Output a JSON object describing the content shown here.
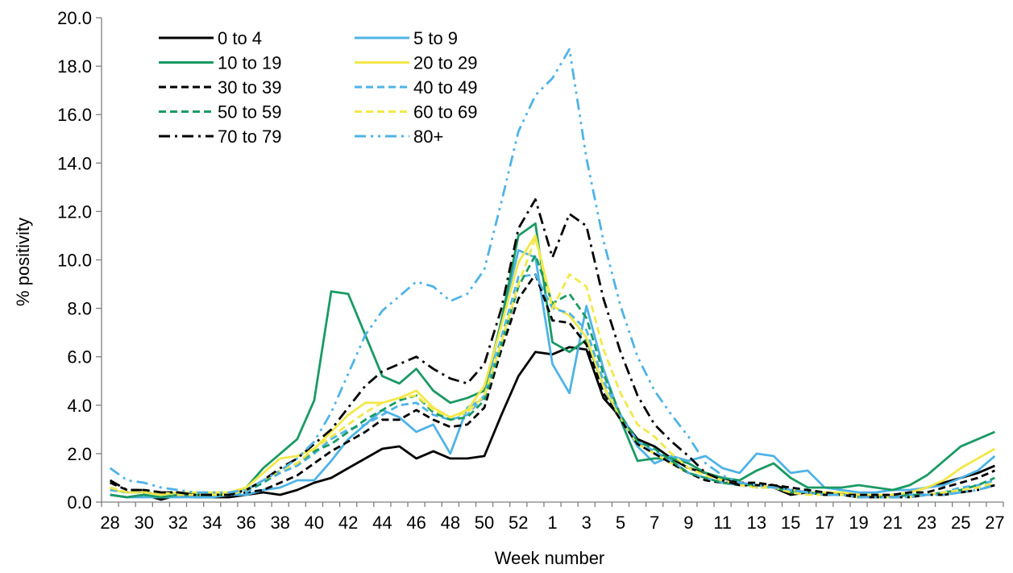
{
  "chart_data": {
    "type": "line",
    "title": "",
    "xlabel": "Week number",
    "ylabel": "% positivity",
    "ylim": [
      0,
      20
    ],
    "yticks": [
      "0.0",
      "2.0",
      "4.0",
      "6.0",
      "8.0",
      "10.0",
      "12.0",
      "14.0",
      "16.0",
      "18.0",
      "20.0"
    ],
    "x": [
      28,
      29,
      30,
      31,
      32,
      33,
      34,
      35,
      36,
      37,
      38,
      39,
      40,
      41,
      42,
      43,
      44,
      45,
      46,
      47,
      48,
      49,
      50,
      51,
      52,
      53,
      1,
      2,
      3,
      4,
      5,
      6,
      7,
      8,
      9,
      10,
      11,
      12,
      13,
      14,
      15,
      16,
      17,
      18,
      19,
      20,
      21,
      22,
      23,
      24,
      25,
      26,
      27
    ],
    "xtick_labels": [
      "28",
      "30",
      "32",
      "34",
      "36",
      "38",
      "40",
      "42",
      "44",
      "46",
      "48",
      "50",
      "52",
      "1",
      "3",
      "5",
      "7",
      "9",
      "11",
      "13",
      "15",
      "17",
      "19",
      "21",
      "23",
      "25",
      "27"
    ],
    "grid": false,
    "legend_position": "top-left",
    "series": [
      {
        "name": "0 to 4",
        "color": "#000000",
        "dash": "solid",
        "values": [
          0.3,
          0.2,
          0.3,
          0.1,
          0.3,
          0.2,
          0.2,
          0.2,
          0.3,
          0.4,
          0.3,
          0.5,
          0.8,
          1.0,
          1.4,
          1.8,
          2.2,
          2.3,
          1.8,
          2.1,
          1.8,
          1.8,
          1.9,
          3.6,
          5.2,
          6.2,
          6.1,
          6.4,
          6.3,
          4.3,
          3.5,
          2.6,
          2.3,
          1.8,
          1.4,
          1.2,
          1.0,
          0.8,
          0.7,
          0.6,
          0.3,
          0.4,
          0.3,
          0.3,
          0.3,
          0.2,
          0.3,
          0.4,
          0.6,
          0.8,
          1.0,
          1.2,
          1.5
        ]
      },
      {
        "name": "5 to 9",
        "color": "#4fb3e6",
        "dash": "solid",
        "values": [
          0.3,
          0.2,
          0.2,
          0.2,
          0.2,
          0.2,
          0.2,
          0.3,
          0.3,
          0.5,
          0.6,
          0.9,
          0.9,
          1.7,
          2.6,
          3.2,
          3.8,
          3.5,
          2.9,
          3.2,
          2.0,
          3.9,
          4.3,
          7.5,
          10.4,
          10.1,
          5.7,
          4.5,
          8.1,
          5.5,
          3.5,
          2.3,
          1.6,
          1.9,
          1.7,
          1.9,
          1.4,
          1.2,
          2.0,
          1.9,
          1.2,
          1.3,
          0.6,
          0.5,
          0.4,
          0.4,
          0.5,
          0.5,
          0.6,
          0.7,
          1.0,
          1.3,
          1.9
        ]
      },
      {
        "name": "10 to 19",
        "color": "#1a9a64",
        "dash": "solid",
        "values": [
          0.3,
          0.2,
          0.3,
          0.2,
          0.3,
          0.3,
          0.3,
          0.3,
          0.6,
          1.4,
          2.0,
          2.6,
          4.2,
          8.7,
          8.6,
          6.9,
          5.2,
          4.9,
          5.5,
          4.6,
          4.1,
          4.3,
          4.6,
          7.5,
          11.0,
          11.5,
          6.6,
          6.2,
          6.7,
          4.8,
          3.4,
          1.7,
          1.8,
          1.8,
          1.6,
          1.2,
          1.0,
          0.9,
          1.3,
          1.6,
          1.0,
          0.6,
          0.6,
          0.6,
          0.7,
          0.6,
          0.5,
          0.7,
          1.1,
          1.7,
          2.3,
          2.6,
          2.9
        ]
      },
      {
        "name": "20 to 29",
        "color": "#f2e84a",
        "dash": "solid",
        "values": [
          0.5,
          0.4,
          0.4,
          0.3,
          0.4,
          0.4,
          0.4,
          0.4,
          0.6,
          1.2,
          1.8,
          1.9,
          2.2,
          2.9,
          3.6,
          4.1,
          4.1,
          4.3,
          4.6,
          3.9,
          3.5,
          3.8,
          4.8,
          7.3,
          9.9,
          11.0,
          8.1,
          7.7,
          6.8,
          4.8,
          3.5,
          2.4,
          2.0,
          1.6,
          1.2,
          1.0,
          0.8,
          0.7,
          0.7,
          0.6,
          0.5,
          0.4,
          0.4,
          0.4,
          0.3,
          0.3,
          0.3,
          0.4,
          0.6,
          0.9,
          1.4,
          1.8,
          2.2
        ]
      },
      {
        "name": "30 to 39",
        "color": "#000000",
        "dash": "dashed",
        "values": [
          0.8,
          0.5,
          0.5,
          0.4,
          0.4,
          0.3,
          0.3,
          0.3,
          0.4,
          0.5,
          0.8,
          1.1,
          1.6,
          2.1,
          2.5,
          2.9,
          3.4,
          3.4,
          3.8,
          3.4,
          3.1,
          3.2,
          3.9,
          6.3,
          8.4,
          9.4,
          7.5,
          7.4,
          6.5,
          4.5,
          3.4,
          2.4,
          2.0,
          1.6,
          1.2,
          0.9,
          0.8,
          0.8,
          0.8,
          0.7,
          0.6,
          0.5,
          0.4,
          0.3,
          0.3,
          0.3,
          0.3,
          0.4,
          0.4,
          0.6,
          0.8,
          1.0,
          1.3
        ]
      },
      {
        "name": "40 to 49",
        "color": "#4fb3e6",
        "dash": "dashed",
        "values": [
          0.5,
          0.4,
          0.4,
          0.4,
          0.3,
          0.3,
          0.3,
          0.3,
          0.4,
          0.8,
          1.2,
          1.5,
          2.0,
          2.6,
          3.0,
          3.2,
          3.6,
          4.0,
          4.1,
          3.6,
          3.4,
          3.6,
          4.4,
          6.8,
          9.3,
          9.4,
          8.0,
          7.8,
          7.1,
          5.0,
          3.6,
          2.5,
          2.1,
          1.7,
          1.2,
          1.0,
          0.8,
          0.7,
          0.6,
          0.6,
          0.5,
          0.4,
          0.3,
          0.3,
          0.2,
          0.2,
          0.2,
          0.3,
          0.3,
          0.4,
          0.6,
          0.7,
          0.9
        ]
      },
      {
        "name": "50 to 59",
        "color": "#1a9a64",
        "dash": "dashed",
        "values": [
          0.6,
          0.4,
          0.4,
          0.4,
          0.3,
          0.3,
          0.3,
          0.3,
          0.5,
          0.8,
          1.3,
          1.6,
          2.1,
          2.4,
          2.9,
          3.4,
          3.8,
          4.2,
          4.4,
          3.7,
          3.4,
          3.5,
          4.2,
          6.5,
          8.9,
          10.2,
          8.2,
          8.6,
          7.6,
          5.3,
          3.6,
          2.5,
          2.2,
          1.7,
          1.2,
          1.0,
          0.8,
          0.7,
          0.7,
          0.6,
          0.4,
          0.4,
          0.3,
          0.3,
          0.2,
          0.2,
          0.2,
          0.3,
          0.3,
          0.4,
          0.5,
          0.7,
          1.0
        ]
      },
      {
        "name": "60 to 69",
        "color": "#f2e84a",
        "dash": "dashed",
        "values": [
          0.6,
          0.4,
          0.4,
          0.4,
          0.3,
          0.3,
          0.3,
          0.3,
          0.5,
          0.9,
          1.3,
          1.6,
          2.2,
          2.7,
          3.2,
          3.7,
          4.1,
          4.3,
          4.4,
          3.8,
          3.5,
          3.7,
          4.4,
          6.6,
          9.0,
          10.9,
          8.0,
          9.4,
          8.9,
          6.3,
          4.5,
          3.2,
          2.7,
          2.0,
          1.4,
          1.1,
          0.9,
          0.7,
          0.6,
          0.6,
          0.4,
          0.3,
          0.3,
          0.3,
          0.2,
          0.2,
          0.2,
          0.2,
          0.3,
          0.4,
          0.5,
          0.6,
          0.8
        ]
      },
      {
        "name": "70 to 79",
        "color": "#000000",
        "dash": "dashdot",
        "values": [
          0.9,
          0.5,
          0.5,
          0.4,
          0.4,
          0.3,
          0.3,
          0.3,
          0.5,
          0.9,
          1.4,
          1.8,
          2.4,
          3.0,
          3.9,
          4.8,
          5.4,
          5.7,
          6.0,
          5.5,
          5.1,
          4.9,
          5.7,
          8.0,
          11.3,
          12.5,
          10.1,
          11.9,
          11.4,
          8.4,
          6.2,
          4.4,
          3.2,
          2.5,
          1.9,
          1.2,
          0.9,
          0.7,
          0.7,
          0.7,
          0.5,
          0.4,
          0.3,
          0.3,
          0.2,
          0.2,
          0.2,
          0.2,
          0.3,
          0.3,
          0.4,
          0.5,
          0.7
        ]
      },
      {
        "name": "80+",
        "color": "#4fb3e6",
        "dash": "dashdotdot",
        "values": [
          1.4,
          0.9,
          0.8,
          0.6,
          0.5,
          0.4,
          0.4,
          0.4,
          0.5,
          0.9,
          1.3,
          1.8,
          2.5,
          3.7,
          5.3,
          6.9,
          7.9,
          8.5,
          9.1,
          8.9,
          8.3,
          8.6,
          9.6,
          12.4,
          15.3,
          16.8,
          17.5,
          18.7,
          14.2,
          10.8,
          8.1,
          6.0,
          4.6,
          3.6,
          2.7,
          1.6,
          1.1,
          0.8,
          0.7,
          0.6,
          0.5,
          0.4,
          0.3,
          0.3,
          0.2,
          0.2,
          0.2,
          0.2,
          0.3,
          0.3,
          0.4,
          0.5,
          0.7
        ]
      }
    ]
  }
}
